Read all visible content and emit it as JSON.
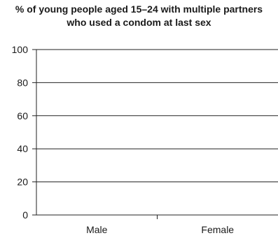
{
  "chart_data": {
    "type": "bar",
    "title": [
      "% of young people aged 15–24 with multiple partners",
      "who used a condom at last sex"
    ],
    "categories": [
      "Male",
      "Female"
    ],
    "series": [],
    "ylim": [
      0,
      100
    ],
    "yticks": [
      0,
      20,
      40,
      60,
      80,
      100
    ],
    "grid": true,
    "xlabel": "",
    "ylabel": ""
  }
}
